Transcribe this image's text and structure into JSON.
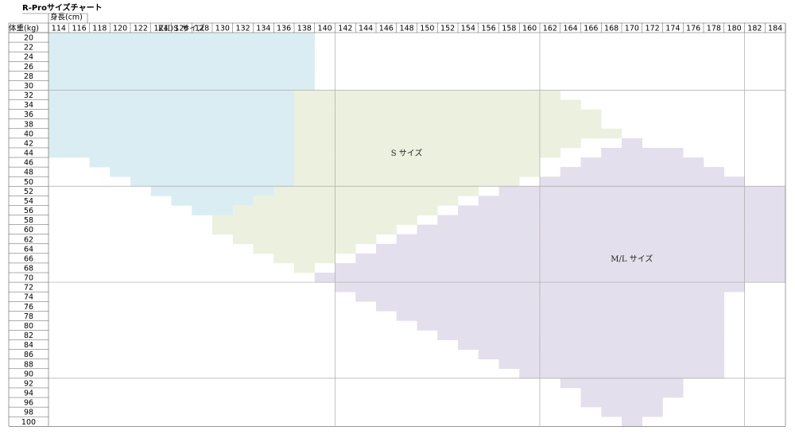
{
  "chart_data": {
    "type": "heatmap",
    "title": "R-Proサイズチャート",
    "xlabel": "身長(cm)",
    "ylabel": "体重(kg)",
    "x_values": [
      114,
      116,
      118,
      120,
      122,
      124,
      126,
      128,
      130,
      132,
      134,
      136,
      138,
      140,
      142,
      144,
      146,
      148,
      150,
      152,
      154,
      156,
      158,
      160,
      162,
      164,
      166,
      168,
      170,
      172,
      174,
      176,
      178,
      180,
      182,
      184
    ],
    "y_values": [
      20,
      22,
      24,
      26,
      28,
      30,
      32,
      34,
      36,
      38,
      40,
      42,
      44,
      46,
      48,
      50,
      52,
      54,
      56,
      58,
      60,
      62,
      64,
      66,
      68,
      70,
      72,
      74,
      76,
      78,
      80,
      82,
      84,
      86,
      88,
      90,
      92,
      94,
      96,
      98,
      100
    ],
    "major_x_lines_after": [
      140,
      160,
      180
    ],
    "major_y_lines_after": [
      30,
      50,
      70,
      90
    ],
    "regions": [
      {
        "name": "KIDS サイズ",
        "color": "#daedf3",
        "label_at": {
          "height": 126,
          "weight": 33
        },
        "ranges": [
          [
            20,
            114,
            138
          ],
          [
            22,
            114,
            138
          ],
          [
            24,
            114,
            138
          ],
          [
            26,
            114,
            138
          ],
          [
            28,
            114,
            138
          ],
          [
            30,
            114,
            138
          ],
          [
            32,
            114,
            136
          ],
          [
            34,
            114,
            136
          ],
          [
            36,
            114,
            136
          ],
          [
            38,
            114,
            136
          ],
          [
            40,
            114,
            136
          ],
          [
            42,
            114,
            136
          ],
          [
            44,
            114,
            136
          ],
          [
            46,
            118,
            136
          ],
          [
            48,
            120,
            136
          ],
          [
            50,
            122,
            136
          ],
          [
            52,
            124,
            136
          ],
          [
            54,
            126,
            134
          ],
          [
            56,
            128,
            132
          ]
        ]
      },
      {
        "name": "S サイズ",
        "color": "#ebf1de",
        "label_at": {
          "height": 148,
          "weight": 44
        },
        "ranges": [
          [
            32,
            138,
            162
          ],
          [
            34,
            138,
            164
          ],
          [
            36,
            138,
            166
          ],
          [
            38,
            138,
            166
          ],
          [
            40,
            138,
            168
          ],
          [
            42,
            138,
            164
          ],
          [
            44,
            138,
            162
          ],
          [
            46,
            138,
            160
          ],
          [
            48,
            138,
            160
          ],
          [
            50,
            138,
            158
          ],
          [
            52,
            136,
            154
          ],
          [
            54,
            134,
            152
          ],
          [
            56,
            132,
            150
          ],
          [
            58,
            130,
            148
          ],
          [
            60,
            130,
            146
          ],
          [
            62,
            132,
            144
          ],
          [
            64,
            134,
            142
          ],
          [
            66,
            136,
            140
          ],
          [
            68,
            138,
            138
          ]
        ]
      },
      {
        "name": "M/L サイズ",
        "color": "#e4dfec",
        "label_at": {
          "height": 170,
          "weight": 66
        },
        "ranges": [
          [
            42,
            170,
            170
          ],
          [
            44,
            168,
            174
          ],
          [
            46,
            166,
            176
          ],
          [
            48,
            164,
            178
          ],
          [
            50,
            162,
            180
          ],
          [
            52,
            158,
            184
          ],
          [
            54,
            156,
            184
          ],
          [
            56,
            154,
            184
          ],
          [
            58,
            152,
            184
          ],
          [
            60,
            150,
            184
          ],
          [
            62,
            148,
            184
          ],
          [
            64,
            146,
            184
          ],
          [
            66,
            144,
            184
          ],
          [
            68,
            142,
            184
          ],
          [
            70,
            140,
            184
          ],
          [
            72,
            142,
            180
          ],
          [
            74,
            144,
            178
          ],
          [
            76,
            146,
            178
          ],
          [
            78,
            148,
            178
          ],
          [
            80,
            150,
            178
          ],
          [
            82,
            152,
            178
          ],
          [
            84,
            154,
            178
          ],
          [
            86,
            156,
            178
          ],
          [
            88,
            158,
            178
          ],
          [
            90,
            160,
            178
          ],
          [
            92,
            164,
            174
          ],
          [
            94,
            166,
            174
          ],
          [
            96,
            166,
            172
          ],
          [
            98,
            168,
            172
          ],
          [
            100,
            170,
            170
          ]
        ]
      }
    ]
  }
}
